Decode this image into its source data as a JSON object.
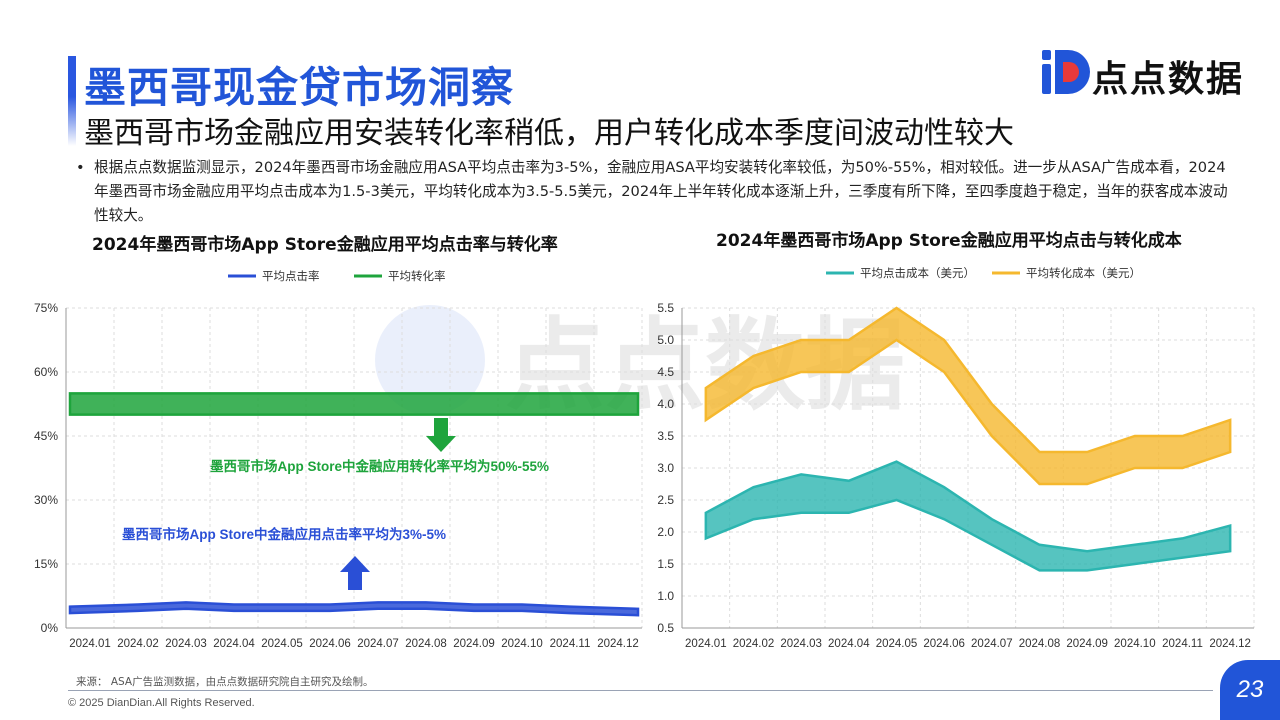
{
  "header": {
    "title": "墨西哥现金贷市场洞察",
    "subtitle": "墨西哥市场金融应用安装转化率稍低，用户转化成本季度间波动性较大"
  },
  "brand": {
    "logo_text": "点点数据",
    "watermark_text": "点点数据",
    "accent": "#2155d8"
  },
  "bullet": {
    "text": "根据点点数据监测显示，2024年墨西哥市场金融应用ASA平均点击率为3-5%，金融应用ASA平均安装转化率较低，为50%-55%，相对较低。进一步从ASA广告成本看，2024年墨西哥市场金融应用平均点击成本为1.5-3美元，平均转化成本为3.5-5.5美元，2024年上半年转化成本逐渐上升，三季度有所下降，至四季度趋于稳定，当年的获客成本波动性较大。"
  },
  "chart_data": [
    {
      "type": "area",
      "title": "2024年墨西哥市场App Store金融应用平均点击率与转化率",
      "categories": [
        "2024.01",
        "2024.02",
        "2024.03",
        "2024.04",
        "2024.05",
        "2024.06",
        "2024.07",
        "2024.08",
        "2024.09",
        "2024.10",
        "2024.11",
        "2024.12"
      ],
      "y_tick_labels": [
        "0%",
        "15%",
        "30%",
        "45%",
        "60%",
        "75%"
      ],
      "ylim": [
        0,
        75
      ],
      "grid": true,
      "legend_position": "top",
      "series": [
        {
          "name": "平均点击率",
          "color": "#2a4fd6",
          "low": [
            3.5,
            4.0,
            4.5,
            4.0,
            4.0,
            4.0,
            4.5,
            4.5,
            4.0,
            4.0,
            3.5,
            3.0
          ],
          "high": [
            5.0,
            5.5,
            6.0,
            5.5,
            5.5,
            5.5,
            6.0,
            6.0,
            5.5,
            5.5,
            5.0,
            4.5
          ]
        },
        {
          "name": "平均转化率",
          "color": "#1ea43c",
          "low": [
            50,
            50,
            50,
            50,
            50,
            50,
            50,
            50,
            50,
            50,
            50,
            50
          ],
          "high": [
            55,
            55,
            55,
            55,
            55,
            55,
            55,
            55,
            55,
            55,
            55,
            55
          ]
        }
      ],
      "annotations": {
        "conversion": "墨西哥市场App Store中金融应用转化率平均为50%-55%",
        "ctr": "墨西哥市场App Store中金融应用点击率平均为3%-5%"
      }
    },
    {
      "type": "area",
      "title": "2024年墨西哥市场App Store金融应用平均点击与转化成本",
      "categories": [
        "2024.01",
        "2024.02",
        "2024.03",
        "2024.04",
        "2024.05",
        "2024.06",
        "2024.07",
        "2024.08",
        "2024.09",
        "2024.10",
        "2024.11",
        "2024.12"
      ],
      "y_tick_labels": [
        "0.5",
        "1.0",
        "1.5",
        "2.0",
        "2.5",
        "3.0",
        "3.5",
        "4.0",
        "4.5",
        "5.0",
        "5.5"
      ],
      "ylim": [
        0.5,
        5.5
      ],
      "grid": true,
      "legend_position": "top",
      "series": [
        {
          "name": "平均点击成本（美元）",
          "color": "#2cb5b0",
          "low": [
            1.9,
            2.2,
            2.3,
            2.3,
            2.5,
            2.2,
            1.8,
            1.4,
            1.4,
            1.5,
            1.6,
            1.7
          ],
          "high": [
            2.3,
            2.7,
            2.9,
            2.8,
            3.1,
            2.7,
            2.2,
            1.8,
            1.7,
            1.8,
            1.9,
            2.1
          ]
        },
        {
          "name": "平均转化成本（美元）",
          "color": "#f5b82e",
          "low": [
            3.75,
            4.25,
            4.5,
            4.5,
            5.0,
            4.5,
            3.5,
            2.75,
            2.75,
            3.0,
            3.0,
            3.25
          ],
          "high": [
            4.25,
            4.75,
            5.0,
            5.0,
            5.5,
            5.0,
            4.0,
            3.25,
            3.25,
            3.5,
            3.5,
            3.75
          ]
        }
      ]
    }
  ],
  "footer": {
    "source": "来源：  ASA广告监测数据，由点点数据研究院自主研究及绘制。",
    "copyright": "© 2025 DianDian.All Rights Reserved.",
    "page_number": "23"
  }
}
